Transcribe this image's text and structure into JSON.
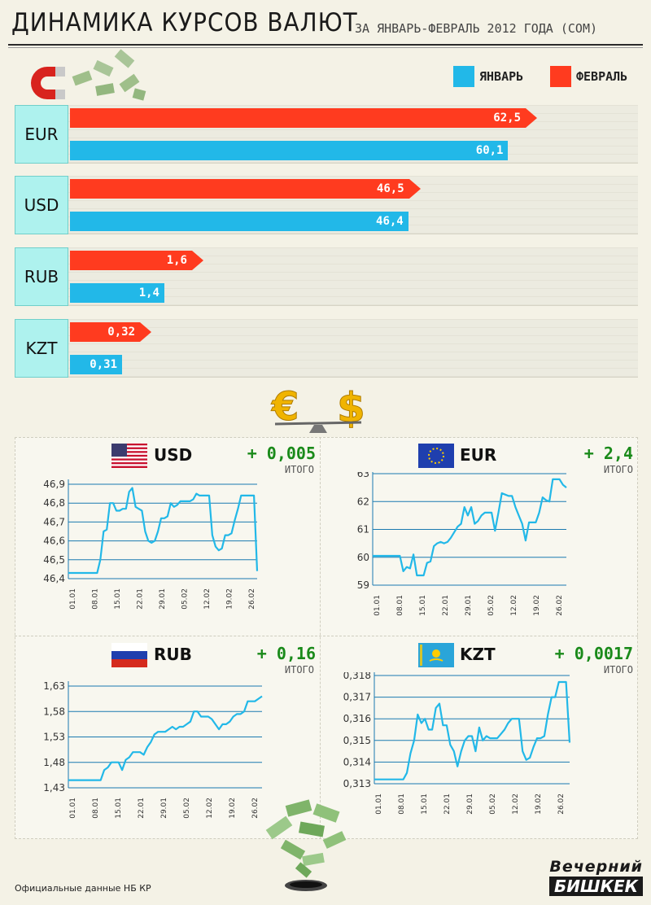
{
  "header": {
    "title": "ДИНАМИКА КУРСОВ ВАЛЮТ",
    "subtitle": "ЗА ЯНВАРЬ-ФЕВРАЛЬ 2012 ГОДА (СОМ)"
  },
  "legend": [
    {
      "label": "ЯНВАРЬ",
      "color": "#22b8e8"
    },
    {
      "label": "ФЕВРАЛЬ",
      "color": "#ff3b1f"
    }
  ],
  "rates": [
    {
      "code": "EUR",
      "feb": "62,5",
      "jan": "60,1"
    },
    {
      "code": "USD",
      "feb": "46,5",
      "jan": "46,4"
    },
    {
      "code": "RUB",
      "feb": "1,6",
      "jan": "1,4"
    },
    {
      "code": "KZT",
      "feb": "0,32",
      "jan": "0,31"
    }
  ],
  "panes": [
    {
      "code": "USD",
      "change": "+ 0,005",
      "itogo": "ИТОГО",
      "flag": "us-flag-icon"
    },
    {
      "code": "EUR",
      "change": "+ 2,4",
      "itogo": "ИТОГО",
      "flag": "eu-flag-icon"
    },
    {
      "code": "RUB",
      "change": "+ 0,16",
      "itogo": "ИТОГО",
      "flag": "ru-flag-icon"
    },
    {
      "code": "KZT",
      "change": "+ 0,0017",
      "itogo": "ИТОГО",
      "flag": "kz-flag-icon"
    }
  ],
  "footer": {
    "note": "Официальные данные НБ КР",
    "brand_line1": "Вечерний",
    "brand_line2": "БИШКЕК"
  },
  "colors": {
    "january": "#22b8e8",
    "february": "#ff3b1f",
    "line": "#22b8e8",
    "change": "#1a8a1a"
  },
  "chart_data": [
    {
      "type": "bar",
      "title": "ДИНАМИКА КУРСОВ ВАЛЮТ",
      "subtitle": "ЗА ЯНВАРЬ-ФЕВРАЛЬ 2012 ГОДА (СОМ)",
      "categories": [
        "EUR",
        "USD",
        "RUB",
        "KZT"
      ],
      "series": [
        {
          "name": "ФЕВРАЛЬ",
          "values": [
            62.5,
            46.5,
            1.6,
            0.32
          ]
        },
        {
          "name": "ЯНВАРЬ",
          "values": [
            60.1,
            46.4,
            1.4,
            0.31
          ]
        }
      ]
    },
    {
      "type": "line",
      "title": "USD",
      "x_ticks": [
        "01.01",
        "08.01",
        "15.01",
        "22.01",
        "29.01",
        "05.02",
        "12.02",
        "19.02",
        "26.02"
      ],
      "y_ticks": [
        "46,9",
        "46,8",
        "46,7",
        "46,6",
        "46,5",
        "46,4"
      ],
      "ylim": [
        46.4,
        46.9
      ],
      "values": [
        46.43,
        46.43,
        46.43,
        46.43,
        46.43,
        46.43,
        46.43,
        46.43,
        46.43,
        46.43,
        46.5,
        46.65,
        46.66,
        46.8,
        46.8,
        46.76,
        46.76,
        46.77,
        46.77,
        46.86,
        46.88,
        46.78,
        46.77,
        46.76,
        46.65,
        46.6,
        46.59,
        46.6,
        46.65,
        46.72,
        46.72,
        46.73,
        46.8,
        46.78,
        46.79,
        46.81,
        46.81,
        46.81,
        46.81,
        46.82,
        46.85,
        46.84,
        46.84,
        46.84,
        46.84,
        46.63,
        46.57,
        46.55,
        46.56,
        46.63,
        46.63,
        46.64,
        46.71,
        46.77,
        46.84,
        46.84,
        46.84,
        46.84,
        46.84,
        46.44
      ]
    },
    {
      "type": "line",
      "title": "EUR",
      "x_ticks": [
        "01.01",
        "08.01",
        "15.01",
        "22.01",
        "29.01",
        "05.02",
        "12.02",
        "19.02",
        "26.02"
      ],
      "y_ticks": [
        "63",
        "62",
        "61",
        "60",
        "59"
      ],
      "ylim": [
        59,
        63
      ],
      "values": [
        60.05,
        60.05,
        60.05,
        60.05,
        60.05,
        60.05,
        60.05,
        60.05,
        60.05,
        59.5,
        59.65,
        59.6,
        60.1,
        59.35,
        59.35,
        59.35,
        59.8,
        59.85,
        60.4,
        60.5,
        60.55,
        60.5,
        60.55,
        60.7,
        60.9,
        61.1,
        61.2,
        61.8,
        61.5,
        61.8,
        61.2,
        61.3,
        61.5,
        61.6,
        61.6,
        61.6,
        60.95,
        61.6,
        62.3,
        62.25,
        62.2,
        62.2,
        61.8,
        61.5,
        61.2,
        60.6,
        61.25,
        61.25,
        61.25,
        61.6,
        62.15,
        62.05,
        62.0,
        62.8,
        62.8,
        62.8,
        62.6,
        62.5
      ]
    },
    {
      "type": "line",
      "title": "RUB",
      "x_ticks": [
        "01.01",
        "08.01",
        "15.01",
        "22.01",
        "29.01",
        "05.02",
        "12.02",
        "19.02",
        "26.02"
      ],
      "y_ticks": [
        "1,63",
        "1,58",
        "1,53",
        "1,48",
        "1,43"
      ],
      "ylim": [
        1.43,
        1.63
      ],
      "values": [
        1.445,
        1.445,
        1.445,
        1.445,
        1.445,
        1.445,
        1.445,
        1.445,
        1.445,
        1.445,
        1.465,
        1.47,
        1.48,
        1.48,
        1.48,
        1.465,
        1.485,
        1.49,
        1.5,
        1.5,
        1.5,
        1.495,
        1.51,
        1.52,
        1.535,
        1.54,
        1.54,
        1.54,
        1.545,
        1.55,
        1.545,
        1.55,
        1.55,
        1.555,
        1.56,
        1.58,
        1.58,
        1.57,
        1.57,
        1.57,
        1.565,
        1.555,
        1.545,
        1.555,
        1.555,
        1.56,
        1.57,
        1.575,
        1.575,
        1.58,
        1.6,
        1.6,
        1.6,
        1.605,
        1.61
      ]
    },
    {
      "type": "line",
      "title": "KZT",
      "x_ticks": [
        "01.01",
        "08.01",
        "15.01",
        "22.01",
        "29.01",
        "05.02",
        "12.02",
        "19.02",
        "26.02"
      ],
      "y_ticks": [
        "0,318",
        "0,317",
        "0,316",
        "0,315",
        "0,314",
        "0,313"
      ],
      "ylim": [
        0.313,
        0.318
      ],
      "values": [
        0.3132,
        0.3132,
        0.3132,
        0.3132,
        0.3132,
        0.3132,
        0.3132,
        0.3132,
        0.3132,
        0.3135,
        0.3144,
        0.315,
        0.3162,
        0.3158,
        0.316,
        0.3155,
        0.3155,
        0.3165,
        0.3167,
        0.3157,
        0.3157,
        0.3148,
        0.3145,
        0.3138,
        0.3145,
        0.315,
        0.3152,
        0.3152,
        0.3145,
        0.3156,
        0.315,
        0.3152,
        0.3151,
        0.3151,
        0.3151,
        0.3153,
        0.3155,
        0.3158,
        0.316,
        0.316,
        0.316,
        0.3145,
        0.3141,
        0.3142,
        0.3147,
        0.3151,
        0.3151,
        0.3152,
        0.3162,
        0.317,
        0.317,
        0.3177,
        0.3177,
        0.3177,
        0.3149
      ]
    }
  ]
}
